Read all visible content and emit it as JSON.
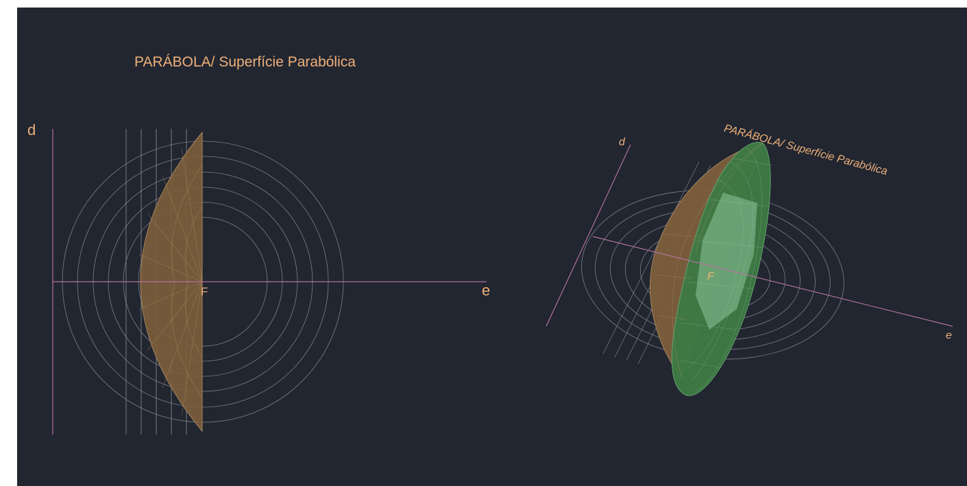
{
  "colors": {
    "background": "#212630",
    "label": "#f0b07a",
    "axis": "#b5709f",
    "grid": "#8f9097",
    "surface_brown": "#8a6a45",
    "surface_green": "#3d7a45"
  },
  "left_view": {
    "title": "PARÁBOLA/ Superfície Parabólica",
    "axis_directrix_label": "d",
    "axis_symmetry_label": "e",
    "focus_label": "F"
  },
  "right_view": {
    "title": "PARÁBOLA/ Superfície Parabólica",
    "axis_directrix_label": "d",
    "axis_symmetry_label": "e",
    "focus_label": "F"
  }
}
